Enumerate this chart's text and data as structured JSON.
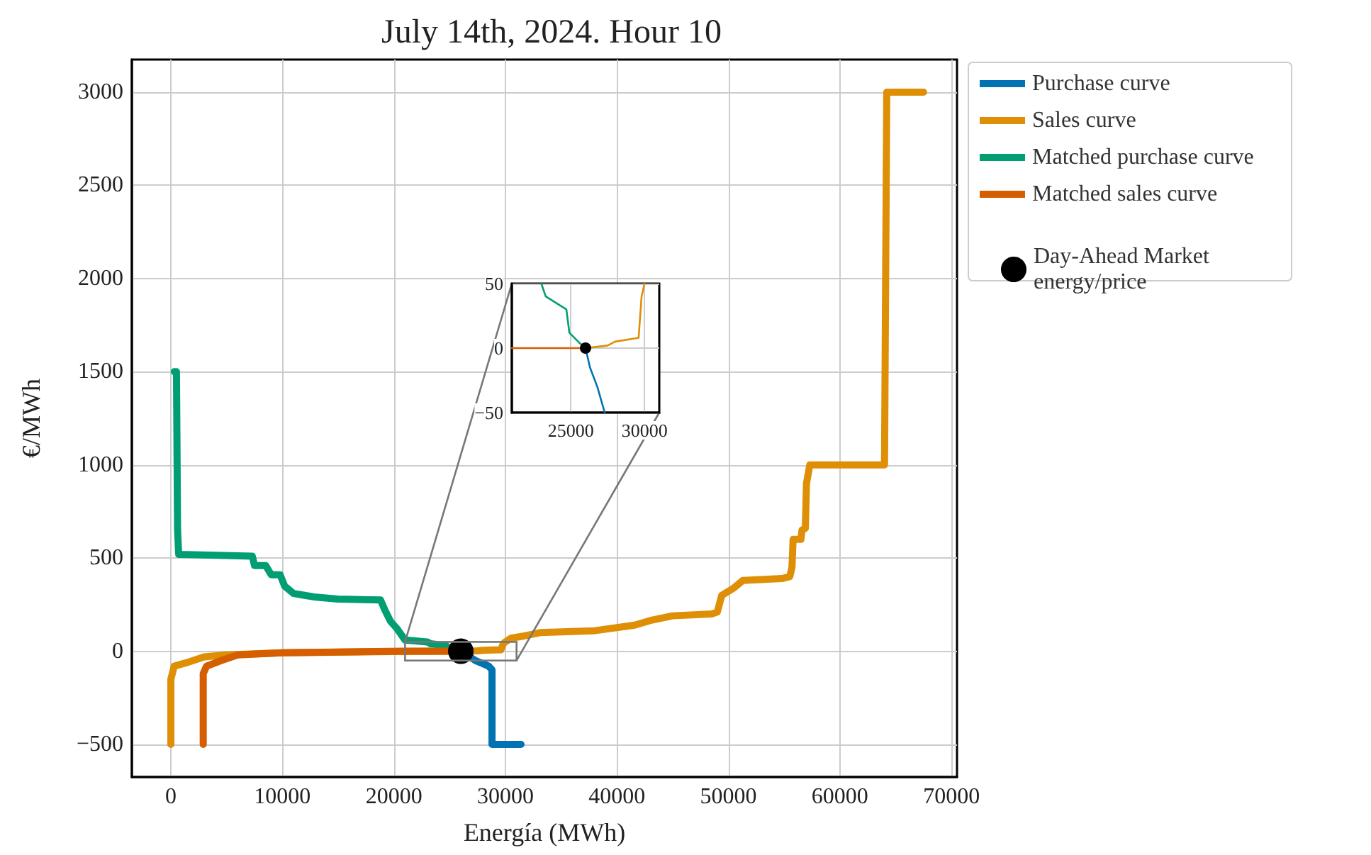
{
  "chart_data": [
    {
      "type": "line",
      "title": "July 14th, 2024. Hour 10",
      "xlabel": "Energía (MWh)",
      "ylabel": "€/MWh",
      "xlim": [
        -3500,
        70500
      ],
      "ylim": [
        -675,
        3175
      ],
      "xticks": [
        0,
        10000,
        20000,
        30000,
        40000,
        50000,
        60000,
        70000
      ],
      "yticks": [
        {
          "value": -500,
          "label": "−500"
        },
        0,
        500,
        1000,
        1500,
        2000,
        2500,
        3000
      ],
      "grid": true,
      "legend": "top right",
      "series": [
        {
          "name": "Purchase curve",
          "color": "#0173b2",
          "x": [
            26000,
            26300,
            26800,
            27300,
            28500,
            28800,
            28800,
            31400
          ],
          "values": [
            0,
            -15,
            -30,
            -50,
            -80,
            -100,
            -500,
            -500
          ]
        },
        {
          "name": "Sales curve",
          "color": "#de8f05",
          "x": [
            0,
            0,
            300,
            1500,
            3000,
            5000,
            10000,
            20000,
            26000,
            27500,
            28000,
            29600,
            29800,
            30000,
            30500,
            31500,
            33100,
            38000,
            41600,
            43000,
            45000,
            48500,
            49000,
            49400,
            50500,
            51300,
            54800,
            55500,
            55700,
            55800,
            56500,
            56600,
            56900,
            57000,
            57300,
            64000,
            64200,
            67500
          ],
          "values": [
            -500,
            -150,
            -80,
            -60,
            -30,
            -20,
            -8,
            -2,
            0,
            2,
            5,
            8,
            40,
            50,
            70,
            80,
            100,
            110,
            140,
            165,
            190,
            200,
            210,
            300,
            340,
            380,
            390,
            400,
            450,
            600,
            600,
            650,
            660,
            900,
            1000,
            1000,
            3000,
            3000
          ]
        },
        {
          "name": "Matched purchase curve",
          "color": "#029e73",
          "x": [
            300,
            500,
            600,
            700,
            7300,
            7500,
            8500,
            9000,
            9800,
            10200,
            11000,
            12000,
            13000,
            15000,
            18800,
            19200,
            19700,
            20300,
            21000,
            23000,
            23300,
            24700,
            24900,
            26000
          ],
          "values": [
            1500,
            1500,
            650,
            520,
            510,
            460,
            460,
            410,
            410,
            350,
            310,
            300,
            290,
            280,
            275,
            220,
            160,
            120,
            60,
            50,
            40,
            30,
            12,
            0
          ]
        },
        {
          "name": "Matched sales curve",
          "color": "#d55e00",
          "x": [
            2900,
            2900,
            3200,
            4500,
            6000,
            10000,
            21000,
            26000
          ],
          "values": [
            -500,
            -120,
            -80,
            -50,
            -20,
            -8,
            0,
            0
          ]
        },
        {
          "name": "Day-Ahead Market energy/price",
          "type": "scatter",
          "color": "#000000",
          "x": [
            26000
          ],
          "values": [
            0
          ]
        }
      ]
    },
    {
      "type": "line",
      "xlim": [
        21000,
        31000
      ],
      "ylim": [
        -50,
        50
      ],
      "xticks": [
        25000,
        30000
      ],
      "yticks": [
        {
          "value": -50,
          "label": "−50"
        },
        0,
        50
      ],
      "grid": true,
      "series": [
        {
          "color": "#0173b2",
          "x": [
            26000,
            26300,
            26800,
            27300
          ],
          "values": [
            0,
            -15,
            -30,
            -50
          ]
        },
        {
          "color": "#de8f05",
          "x": [
            26000,
            27500,
            28000,
            29600,
            29800,
            30000
          ],
          "values": [
            0,
            2,
            5,
            8,
            40,
            50
          ]
        },
        {
          "color": "#029e73",
          "x": [
            23000,
            23300,
            24700,
            24900,
            25500,
            26000
          ],
          "values": [
            50,
            40,
            30,
            12,
            5,
            0
          ]
        },
        {
          "color": "#d55e00",
          "x": [
            21000,
            26000
          ],
          "values": [
            0,
            0
          ]
        },
        {
          "type": "scatter",
          "color": "#000000",
          "x": [
            26000
          ],
          "values": [
            0
          ]
        }
      ]
    }
  ]
}
